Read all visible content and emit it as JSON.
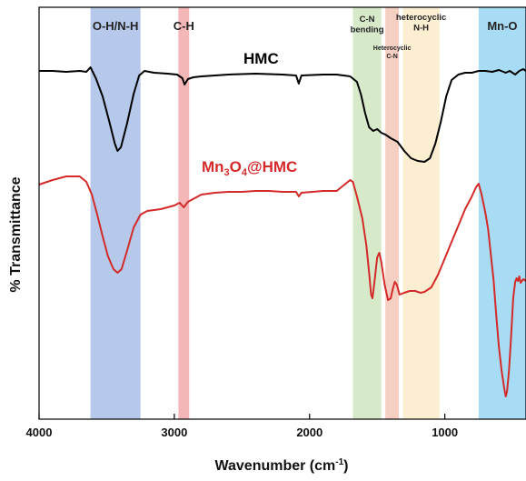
{
  "chart_data": {
    "type": "line",
    "xlabel": "Wavenumber (cm",
    "xlabel_sup": "-1",
    "xlabel_close": ")",
    "ylabel": "% Transmittance",
    "xlim": [
      4000,
      400
    ],
    "xticks": [
      4000,
      3000,
      2000,
      1000
    ],
    "grid": false,
    "colors": {
      "hmc": "#000000",
      "mn3o4": "#d42a2a"
    },
    "bands": [
      {
        "name": "oh-nh",
        "from": 3620,
        "to": 3250,
        "color": "#a9bfe6",
        "label_lines": [
          "O-H/N-H"
        ],
        "label_size": "large"
      },
      {
        "name": "ch",
        "from": 2970,
        "to": 2890,
        "color": "#f2aaaa",
        "label_lines": [
          "C-H"
        ],
        "label_size": "large"
      },
      {
        "name": "cn-bending",
        "from": 1680,
        "to": 1470,
        "color": "#cfe6c0",
        "label_lines": [
          "C-N",
          "bending"
        ],
        "label_size": "small"
      },
      {
        "name": "heterocyclic-cn",
        "from": 1440,
        "to": 1340,
        "color": "#f5c7b8",
        "label_lines": [
          "Heterocyclic",
          "C-N"
        ],
        "label_size": "tiny"
      },
      {
        "name": "heterocyclic-nh",
        "from": 1310,
        "to": 1040,
        "color": "#fcebc9",
        "label_lines": [
          "heterocyclic",
          "N-H"
        ],
        "label_size": "small"
      },
      {
        "name": "mn-o",
        "from": 750,
        "to": 400,
        "color": "#98d6f2",
        "label_lines": [
          "Mn-O"
        ],
        "label_size": "large"
      }
    ],
    "series": [
      {
        "name": "HMC",
        "color": "#000000",
        "points": [
          [
            4000,
            70
          ],
          [
            3900,
            70
          ],
          [
            3800,
            71
          ],
          [
            3700,
            70
          ],
          [
            3650,
            71
          ],
          [
            3620,
            66
          ],
          [
            3580,
            78
          ],
          [
            3530,
            98
          ],
          [
            3480,
            126
          ],
          [
            3440,
            150
          ],
          [
            3420,
            158
          ],
          [
            3395,
            154
          ],
          [
            3350,
            128
          ],
          [
            3300,
            95
          ],
          [
            3260,
            75
          ],
          [
            3220,
            70
          ],
          [
            3150,
            72
          ],
          [
            3050,
            73
          ],
          [
            2980,
            74
          ],
          [
            2940,
            78
          ],
          [
            2925,
            85
          ],
          [
            2900,
            79
          ],
          [
            2860,
            77
          ],
          [
            2800,
            76
          ],
          [
            2600,
            74
          ],
          [
            2400,
            73
          ],
          [
            2200,
            74
          ],
          [
            2100,
            75
          ],
          [
            2080,
            84
          ],
          [
            2060,
            75
          ],
          [
            1900,
            74
          ],
          [
            1800,
            74
          ],
          [
            1700,
            76
          ],
          [
            1650,
            82
          ],
          [
            1620,
            96
          ],
          [
            1590,
            116
          ],
          [
            1560,
            132
          ],
          [
            1530,
            136
          ],
          [
            1500,
            134
          ],
          [
            1470,
            138
          ],
          [
            1440,
            140
          ],
          [
            1400,
            144
          ],
          [
            1350,
            148
          ],
          [
            1300,
            158
          ],
          [
            1250,
            166
          ],
          [
            1200,
            169
          ],
          [
            1150,
            170
          ],
          [
            1110,
            166
          ],
          [
            1070,
            150
          ],
          [
            1030,
            126
          ],
          [
            990,
            98
          ],
          [
            950,
            80
          ],
          [
            900,
            74
          ],
          [
            850,
            72
          ],
          [
            800,
            72
          ],
          [
            750,
            70
          ],
          [
            700,
            70
          ],
          [
            650,
            71
          ],
          [
            600,
            69
          ],
          [
            550,
            72
          ],
          [
            520,
            70
          ],
          [
            480,
            74
          ],
          [
            450,
            70
          ],
          [
            420,
            68
          ],
          [
            400,
            70
          ]
        ]
      },
      {
        "name": "Mn3O4@HMC",
        "label_base": "Mn",
        "label_sub1": "3",
        "label_mid": "O",
        "label_sub2": "4",
        "label_rest": "@HMC",
        "color": "#d42a2a",
        "points": [
          [
            4000,
            195
          ],
          [
            3900,
            190
          ],
          [
            3800,
            186
          ],
          [
            3700,
            186
          ],
          [
            3650,
            192
          ],
          [
            3610,
            206
          ],
          [
            3570,
            228
          ],
          [
            3530,
            252
          ],
          [
            3490,
            274
          ],
          [
            3450,
            288
          ],
          [
            3420,
            292
          ],
          [
            3390,
            288
          ],
          [
            3350,
            268
          ],
          [
            3300,
            242
          ],
          [
            3250,
            228
          ],
          [
            3200,
            224
          ],
          [
            3100,
            222
          ],
          [
            3000,
            218
          ],
          [
            2960,
            215
          ],
          [
            2930,
            220
          ],
          [
            2900,
            214
          ],
          [
            2850,
            210
          ],
          [
            2800,
            206
          ],
          [
            2700,
            204
          ],
          [
            2600,
            203
          ],
          [
            2500,
            203
          ],
          [
            2400,
            202
          ],
          [
            2300,
            202
          ],
          [
            2200,
            203
          ],
          [
            2100,
            203
          ],
          [
            2080,
            208
          ],
          [
            2060,
            204
          ],
          [
            1900,
            202
          ],
          [
            1800,
            202
          ],
          [
            1700,
            190
          ],
          [
            1680,
            192
          ],
          [
            1650,
            208
          ],
          [
            1610,
            232
          ],
          [
            1580,
            262
          ],
          [
            1560,
            292
          ],
          [
            1545,
            316
          ],
          [
            1535,
            320
          ],
          [
            1520,
            302
          ],
          [
            1500,
            275
          ],
          [
            1485,
            270
          ],
          [
            1470,
            280
          ],
          [
            1445,
            305
          ],
          [
            1420,
            322
          ],
          [
            1400,
            320
          ],
          [
            1385,
            310
          ],
          [
            1370,
            302
          ],
          [
            1355,
            305
          ],
          [
            1335,
            316
          ],
          [
            1300,
            314
          ],
          [
            1260,
            312
          ],
          [
            1220,
            312
          ],
          [
            1180,
            314
          ],
          [
            1150,
            313
          ],
          [
            1100,
            308
          ],
          [
            1050,
            294
          ],
          [
            1000,
            276
          ],
          [
            950,
            258
          ],
          [
            900,
            240
          ],
          [
            850,
            222
          ],
          [
            800,
            208
          ],
          [
            770,
            198
          ],
          [
            750,
            194
          ],
          [
            730,
            205
          ],
          [
            700,
            226
          ],
          [
            680,
            244
          ],
          [
            660,
            272
          ],
          [
            640,
            300
          ],
          [
            620,
            338
          ],
          [
            600,
            374
          ],
          [
            580,
            400
          ],
          [
            560,
            420
          ],
          [
            550,
            428
          ],
          [
            540,
            422
          ],
          [
            525,
            398
          ],
          [
            510,
            362
          ],
          [
            495,
            320
          ],
          [
            480,
            302
          ],
          [
            470,
            298
          ],
          [
            460,
            301
          ],
          [
            450,
            296
          ],
          [
            440,
            303
          ],
          [
            420,
            299
          ],
          [
            400,
            301
          ]
        ]
      }
    ]
  },
  "labels": {
    "hmc": "HMC"
  }
}
